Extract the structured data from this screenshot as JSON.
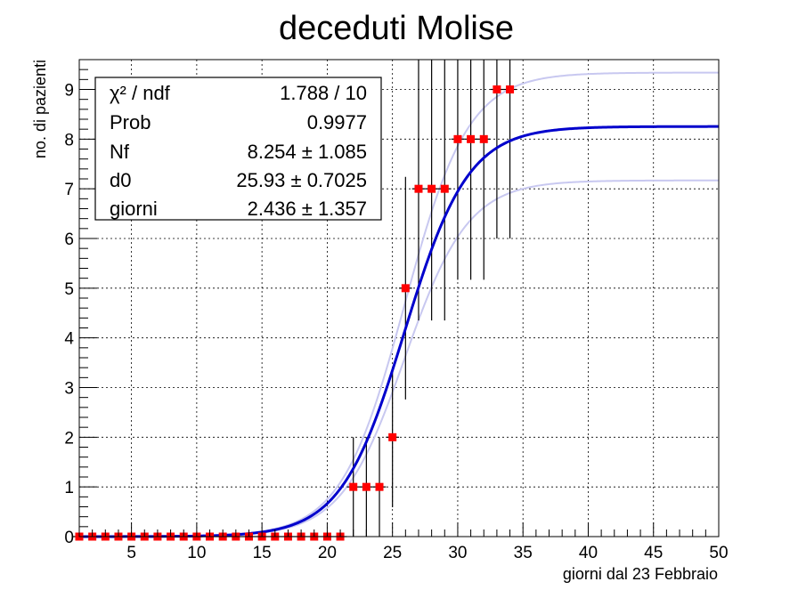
{
  "chart_data": {
    "type": "scatter",
    "title": "deceduti Molise",
    "xlabel": "giorni dal 23 Febbraio",
    "ylabel": "no. di pazienti",
    "xlim": [
      1,
      50
    ],
    "ylim": [
      0,
      9.6
    ],
    "xticks": [
      5,
      10,
      15,
      20,
      25,
      30,
      35,
      40,
      45,
      50
    ],
    "yticks": [
      0,
      1,
      2,
      3,
      4,
      5,
      6,
      7,
      8,
      9
    ],
    "grid": true,
    "series": [
      {
        "x": [
          1,
          2,
          3,
          4,
          5,
          6,
          7,
          8,
          9,
          10,
          11,
          12,
          13,
          14,
          15,
          16,
          17,
          18,
          19,
          20,
          21,
          22,
          23,
          24,
          25,
          26,
          27,
          28,
          29,
          30,
          31,
          32,
          33,
          34
        ],
        "y": [
          0,
          0,
          0,
          0,
          0,
          0,
          0,
          0,
          0,
          0,
          0,
          0,
          0,
          0,
          0,
          0,
          0,
          0,
          0,
          0,
          0,
          1,
          1,
          1,
          2,
          5,
          7,
          7,
          7,
          8,
          8,
          8,
          9,
          9
        ],
        "errors": [
          0,
          0,
          0,
          0,
          0,
          0,
          0,
          0,
          0,
          0,
          0,
          0,
          0,
          0,
          0,
          0,
          0,
          0,
          0,
          0,
          0,
          1,
          1,
          1,
          1.41,
          2.24,
          2.65,
          2.65,
          2.65,
          2.83,
          2.83,
          2.83,
          3,
          3
        ],
        "color": "#ff0000"
      }
    ],
    "fit": {
      "model": "logistic",
      "Nf": 8.254,
      "d0": 25.93,
      "giorni": 2.436,
      "upper_Nf": 9.339,
      "lower_Nf": 7.169,
      "color": "#0000cc",
      "band_color": "#c8c8f0"
    },
    "stats_box": {
      "placement": "top-left",
      "rows": [
        {
          "label": "χ² / ndf",
          "value": "1.788 / 10"
        },
        {
          "label": "Prob",
          "value": "0.9977"
        },
        {
          "label": "Nf",
          "value": "8.254 ± 1.085"
        },
        {
          "label": "d0",
          "value": "25.93 ± 0.7025"
        },
        {
          "label": "giorni",
          "value": "2.436 ± 1.357"
        }
      ]
    }
  }
}
